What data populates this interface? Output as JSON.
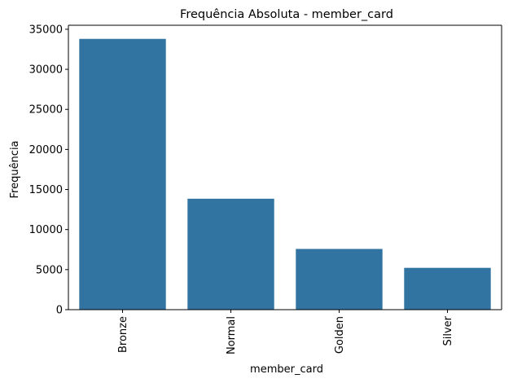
{
  "chart_data": {
    "type": "bar",
    "title": "Frequência Absoluta - member_card",
    "xlabel": "member_card",
    "ylabel": "Frequência",
    "categories": [
      "Bronze",
      "Normal",
      "Golden",
      "Silver"
    ],
    "values": [
      33800,
      13850,
      7580,
      5220
    ],
    "ylim": [
      0,
      35500
    ],
    "yticks": [
      0,
      5000,
      10000,
      15000,
      20000,
      25000,
      30000,
      35000
    ],
    "grid": false,
    "legend": false,
    "bar_color": "#3274a1",
    "xtick_rotation": "vertical"
  }
}
